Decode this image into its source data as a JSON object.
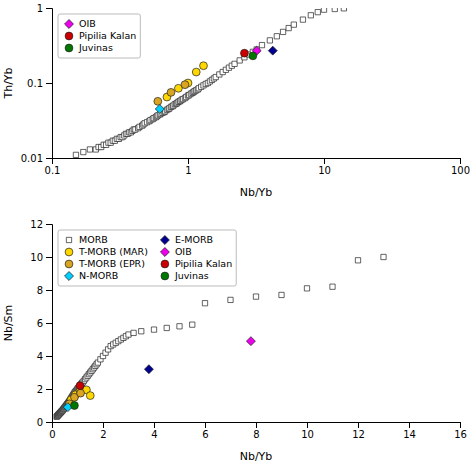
{
  "chart_data": [
    {
      "type": "scatter",
      "x_label": "Nb/Yb",
      "y_label": "Th/Yb",
      "log": true,
      "xlim": [
        0.1,
        100
      ],
      "ylim": [
        0.01,
        1
      ],
      "xticks": [
        0.1,
        1,
        10,
        100
      ],
      "yticks": [
        0.01,
        0.1,
        1
      ],
      "legend": "upper left",
      "series": [
        {
          "marker": "square",
          "color": "white",
          "x": [
            0.15,
            0.17,
            0.19,
            0.21,
            0.22,
            0.23,
            0.24,
            0.25,
            0.26,
            0.27,
            0.28,
            0.29,
            0.3,
            0.31,
            0.32,
            0.33,
            0.34,
            0.35,
            0.36,
            0.37,
            0.38,
            0.39,
            0.4,
            0.41,
            0.43,
            0.44,
            0.46,
            0.47,
            0.48,
            0.5,
            0.52,
            0.53,
            0.55,
            0.56,
            0.58,
            0.59,
            0.6,
            0.62,
            0.63,
            0.65,
            0.67,
            0.68,
            0.7,
            0.72,
            0.73,
            0.75,
            0.77,
            0.78,
            0.8,
            0.82,
            0.83,
            0.85,
            0.87,
            0.88,
            0.9,
            0.92,
            0.95,
            0.97,
            1.0,
            1.02,
            1.05,
            1.08,
            1.1,
            1.12,
            1.15,
            1.18,
            1.2,
            1.25,
            1.3,
            1.35,
            1.4,
            1.45,
            1.5,
            1.55,
            1.6,
            1.7,
            1.8,
            1.9,
            2.0,
            2.1,
            2.2,
            2.4,
            2.6,
            2.8,
            3.0,
            3.2,
            3.5,
            4.0,
            4.5,
            5.0,
            5.5,
            6.0,
            7.0,
            8.0,
            9.0,
            10.0,
            12.0,
            14.0
          ],
          "values": [
            0.011,
            0.012,
            0.013,
            0.013,
            0.014,
            0.014,
            0.015,
            0.015,
            0.016,
            0.016,
            0.017,
            0.017,
            0.018,
            0.018,
            0.019,
            0.019,
            0.02,
            0.021,
            0.021,
            0.022,
            0.022,
            0.023,
            0.024,
            0.024,
            0.025,
            0.026,
            0.027,
            0.028,
            0.029,
            0.03,
            0.031,
            0.032,
            0.033,
            0.034,
            0.035,
            0.036,
            0.037,
            0.038,
            0.039,
            0.04,
            0.041,
            0.042,
            0.044,
            0.045,
            0.046,
            0.048,
            0.049,
            0.05,
            0.052,
            0.053,
            0.054,
            0.056,
            0.057,
            0.058,
            0.06,
            0.061,
            0.063,
            0.065,
            0.068,
            0.069,
            0.072,
            0.074,
            0.076,
            0.078,
            0.08,
            0.082,
            0.085,
            0.089,
            0.093,
            0.097,
            0.1,
            0.105,
            0.11,
            0.115,
            0.12,
            0.13,
            0.14,
            0.15,
            0.16,
            0.17,
            0.18,
            0.2,
            0.22,
            0.24,
            0.26,
            0.28,
            0.32,
            0.37,
            0.42,
            0.48,
            0.54,
            0.6,
            0.7,
            0.8,
            0.88,
            0.95,
            0.97,
            0.99
          ]
        },
        {
          "marker": "circle",
          "color": "#FFD700",
          "x": [
            0.7,
            0.85,
            1.0,
            1.15,
            1.3
          ],
          "values": [
            0.065,
            0.085,
            0.1,
            0.14,
            0.17
          ]
        },
        {
          "marker": "circle",
          "color": "#DAA520",
          "x": [
            0.6,
            0.75,
            0.95
          ],
          "values": [
            0.057,
            0.075,
            0.095
          ]
        },
        {
          "marker": "diamond",
          "color": "#00CFFF",
          "x": [
            0.62
          ],
          "values": [
            0.045
          ]
        },
        {
          "marker": "diamond",
          "color": "#000090",
          "x": [
            4.2
          ],
          "values": [
            0.27
          ]
        },
        {
          "name": "OIB",
          "marker": "diamond",
          "color": "#EE00EE",
          "x": [
            3.2
          ],
          "values": [
            0.27
          ]
        },
        {
          "name": "Pipilia Kalan",
          "marker": "circle",
          "color": "#CC0000",
          "x": [
            2.6
          ],
          "values": [
            0.25
          ]
        },
        {
          "name": "Juvinas",
          "marker": "circle",
          "color": "#007700",
          "x": [
            3.0
          ],
          "values": [
            0.23
          ]
        }
      ]
    },
    {
      "type": "scatter",
      "x_label": "Nb/Yb",
      "y_label": "Nb/Sm",
      "xlim": [
        0,
        16
      ],
      "ylim": [
        0,
        12
      ],
      "xticks": [
        0,
        2,
        4,
        6,
        8,
        10,
        12,
        14,
        16
      ],
      "yticks": [
        0,
        2,
        4,
        6,
        8,
        10,
        12
      ],
      "legend": "upper left",
      "series": [
        {
          "name": "MORB",
          "marker": "square",
          "color": "white",
          "x": [
            0.18,
            0.2,
            0.22,
            0.24,
            0.26,
            0.28,
            0.3,
            0.32,
            0.34,
            0.36,
            0.38,
            0.4,
            0.42,
            0.44,
            0.46,
            0.48,
            0.5,
            0.52,
            0.54,
            0.56,
            0.58,
            0.6,
            0.62,
            0.64,
            0.66,
            0.68,
            0.7,
            0.72,
            0.74,
            0.76,
            0.78,
            0.8,
            0.82,
            0.84,
            0.86,
            0.88,
            0.9,
            0.92,
            0.95,
            0.98,
            1.0,
            1.02,
            1.05,
            1.08,
            1.1,
            1.12,
            1.15,
            1.18,
            1.2,
            1.25,
            1.3,
            1.35,
            1.4,
            1.45,
            1.5,
            1.55,
            1.6,
            1.65,
            1.7,
            1.75,
            1.8,
            1.9,
            2.0,
            2.1,
            2.2,
            2.3,
            2.4,
            2.5,
            2.6,
            2.7,
            2.8,
            2.9,
            3.0,
            3.2,
            3.5,
            4.0,
            4.5,
            5.0,
            5.5,
            6.0,
            7.0,
            8.0,
            9.0,
            10.0,
            11.0,
            12.0,
            13.0
          ],
          "values": [
            0.32,
            0.35,
            0.38,
            0.42,
            0.45,
            0.48,
            0.52,
            0.55,
            0.58,
            0.62,
            0.65,
            0.68,
            0.72,
            0.76,
            0.8,
            0.84,
            0.88,
            0.92,
            0.96,
            1.0,
            1.05,
            1.08,
            1.12,
            1.16,
            1.2,
            1.25,
            1.3,
            1.35,
            1.4,
            1.45,
            1.5,
            1.55,
            1.6,
            1.65,
            1.7,
            1.75,
            1.8,
            1.85,
            1.9,
            1.95,
            2.0,
            2.05,
            2.1,
            2.15,
            2.2,
            2.25,
            2.3,
            2.35,
            2.4,
            2.5,
            2.6,
            2.7,
            2.8,
            2.9,
            3.0,
            3.1,
            3.2,
            3.3,
            3.4,
            3.5,
            3.6,
            3.8,
            4.0,
            4.2,
            4.4,
            4.6,
            4.7,
            4.8,
            4.9,
            5.0,
            5.1,
            5.2,
            5.3,
            5.4,
            5.5,
            5.6,
            5.7,
            5.8,
            5.9,
            7.2,
            7.4,
            7.6,
            7.7,
            8.1,
            8.2,
            9.8,
            10.0
          ]
        },
        {
          "name": "T-MORB (MAR)",
          "marker": "circle",
          "color": "#FFD700",
          "x": [
            0.75,
            0.92,
            1.1,
            1.35,
            1.5
          ],
          "values": [
            1.35,
            1.65,
            1.9,
            1.95,
            1.6
          ]
        },
        {
          "name": "T-MORB (EPR)",
          "marker": "circle",
          "color": "#DAA520",
          "x": [
            0.68,
            0.88,
            1.12
          ],
          "values": [
            1.1,
            1.5,
            1.75
          ]
        },
        {
          "name": "N-MORB",
          "marker": "diamond",
          "color": "#00CFFF",
          "x": [
            0.62
          ],
          "values": [
            0.9
          ]
        },
        {
          "name": "E-MORB",
          "marker": "diamond",
          "color": "#000090",
          "x": [
            3.8
          ],
          "values": [
            3.2
          ]
        },
        {
          "name": "OIB",
          "marker": "diamond",
          "color": "#EE00EE",
          "x": [
            7.8
          ],
          "values": [
            4.9
          ]
        },
        {
          "name": "Pipilia Kalan",
          "marker": "circle",
          "color": "#CC0000",
          "x": [
            1.1
          ],
          "values": [
            2.2
          ]
        },
        {
          "name": "Juvinas",
          "marker": "circle",
          "color": "#007700",
          "x": [
            0.88
          ],
          "values": [
            1.0
          ]
        }
      ]
    }
  ]
}
